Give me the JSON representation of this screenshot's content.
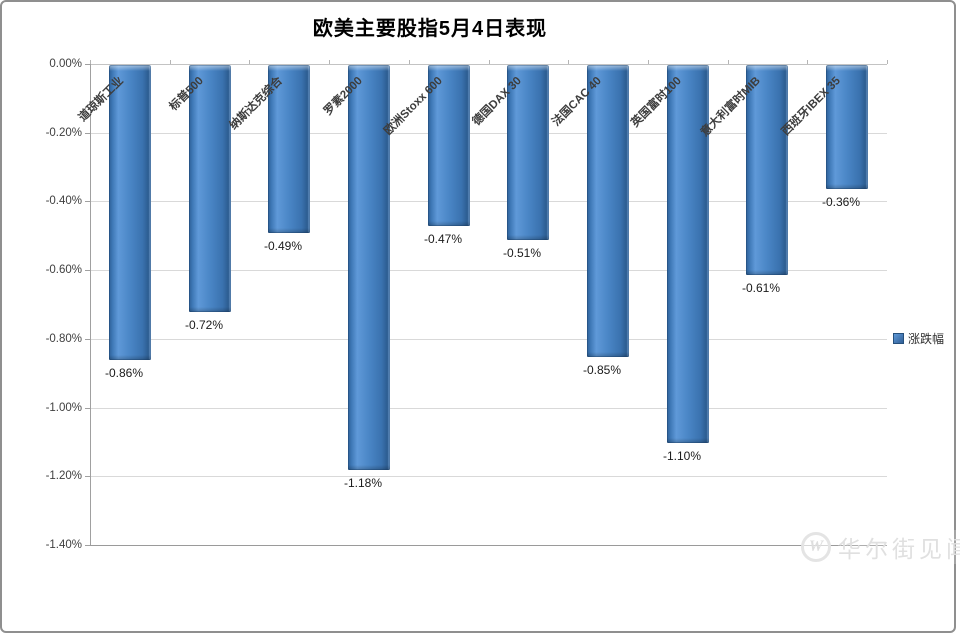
{
  "title": "欧美主要股指5月4日表现",
  "legend": {
    "label": "涨跌幅"
  },
  "watermark": {
    "logo_letter": "W",
    "text": "华尔街见闻"
  },
  "chart_data": {
    "type": "bar",
    "title": "欧美主要股指5月4日表现",
    "series_name": "涨跌幅",
    "categories": [
      "道琼斯工业",
      "标普500",
      "纳斯达克综合",
      "罗素2000",
      "欧洲Stoxx 600",
      "德国DAX 30",
      "法国CAC 40",
      "英国富时100",
      "意大利富时MIB",
      "西班牙IBEX 35"
    ],
    "values": [
      -0.86,
      -0.72,
      -0.49,
      -1.18,
      -0.47,
      -0.51,
      -0.85,
      -1.1,
      -0.61,
      -0.36
    ],
    "data_labels": [
      "-0.86%",
      "-0.72%",
      "-0.49%",
      "-1.18%",
      "-0.47%",
      "-0.51%",
      "-0.85%",
      "-1.10%",
      "-0.61%",
      "-0.36%"
    ],
    "xlabel": "",
    "ylabel": "",
    "ylim": [
      -1.4,
      0
    ],
    "y_ticks": [
      "0.00%",
      "-0.20%",
      "-0.40%",
      "-0.60%",
      "-0.80%",
      "-1.00%",
      "-1.20%",
      "-1.40%"
    ],
    "grid": true,
    "legend_position": "right",
    "bar_color": "#3f76b4",
    "label_color": "#1a1a1a"
  }
}
